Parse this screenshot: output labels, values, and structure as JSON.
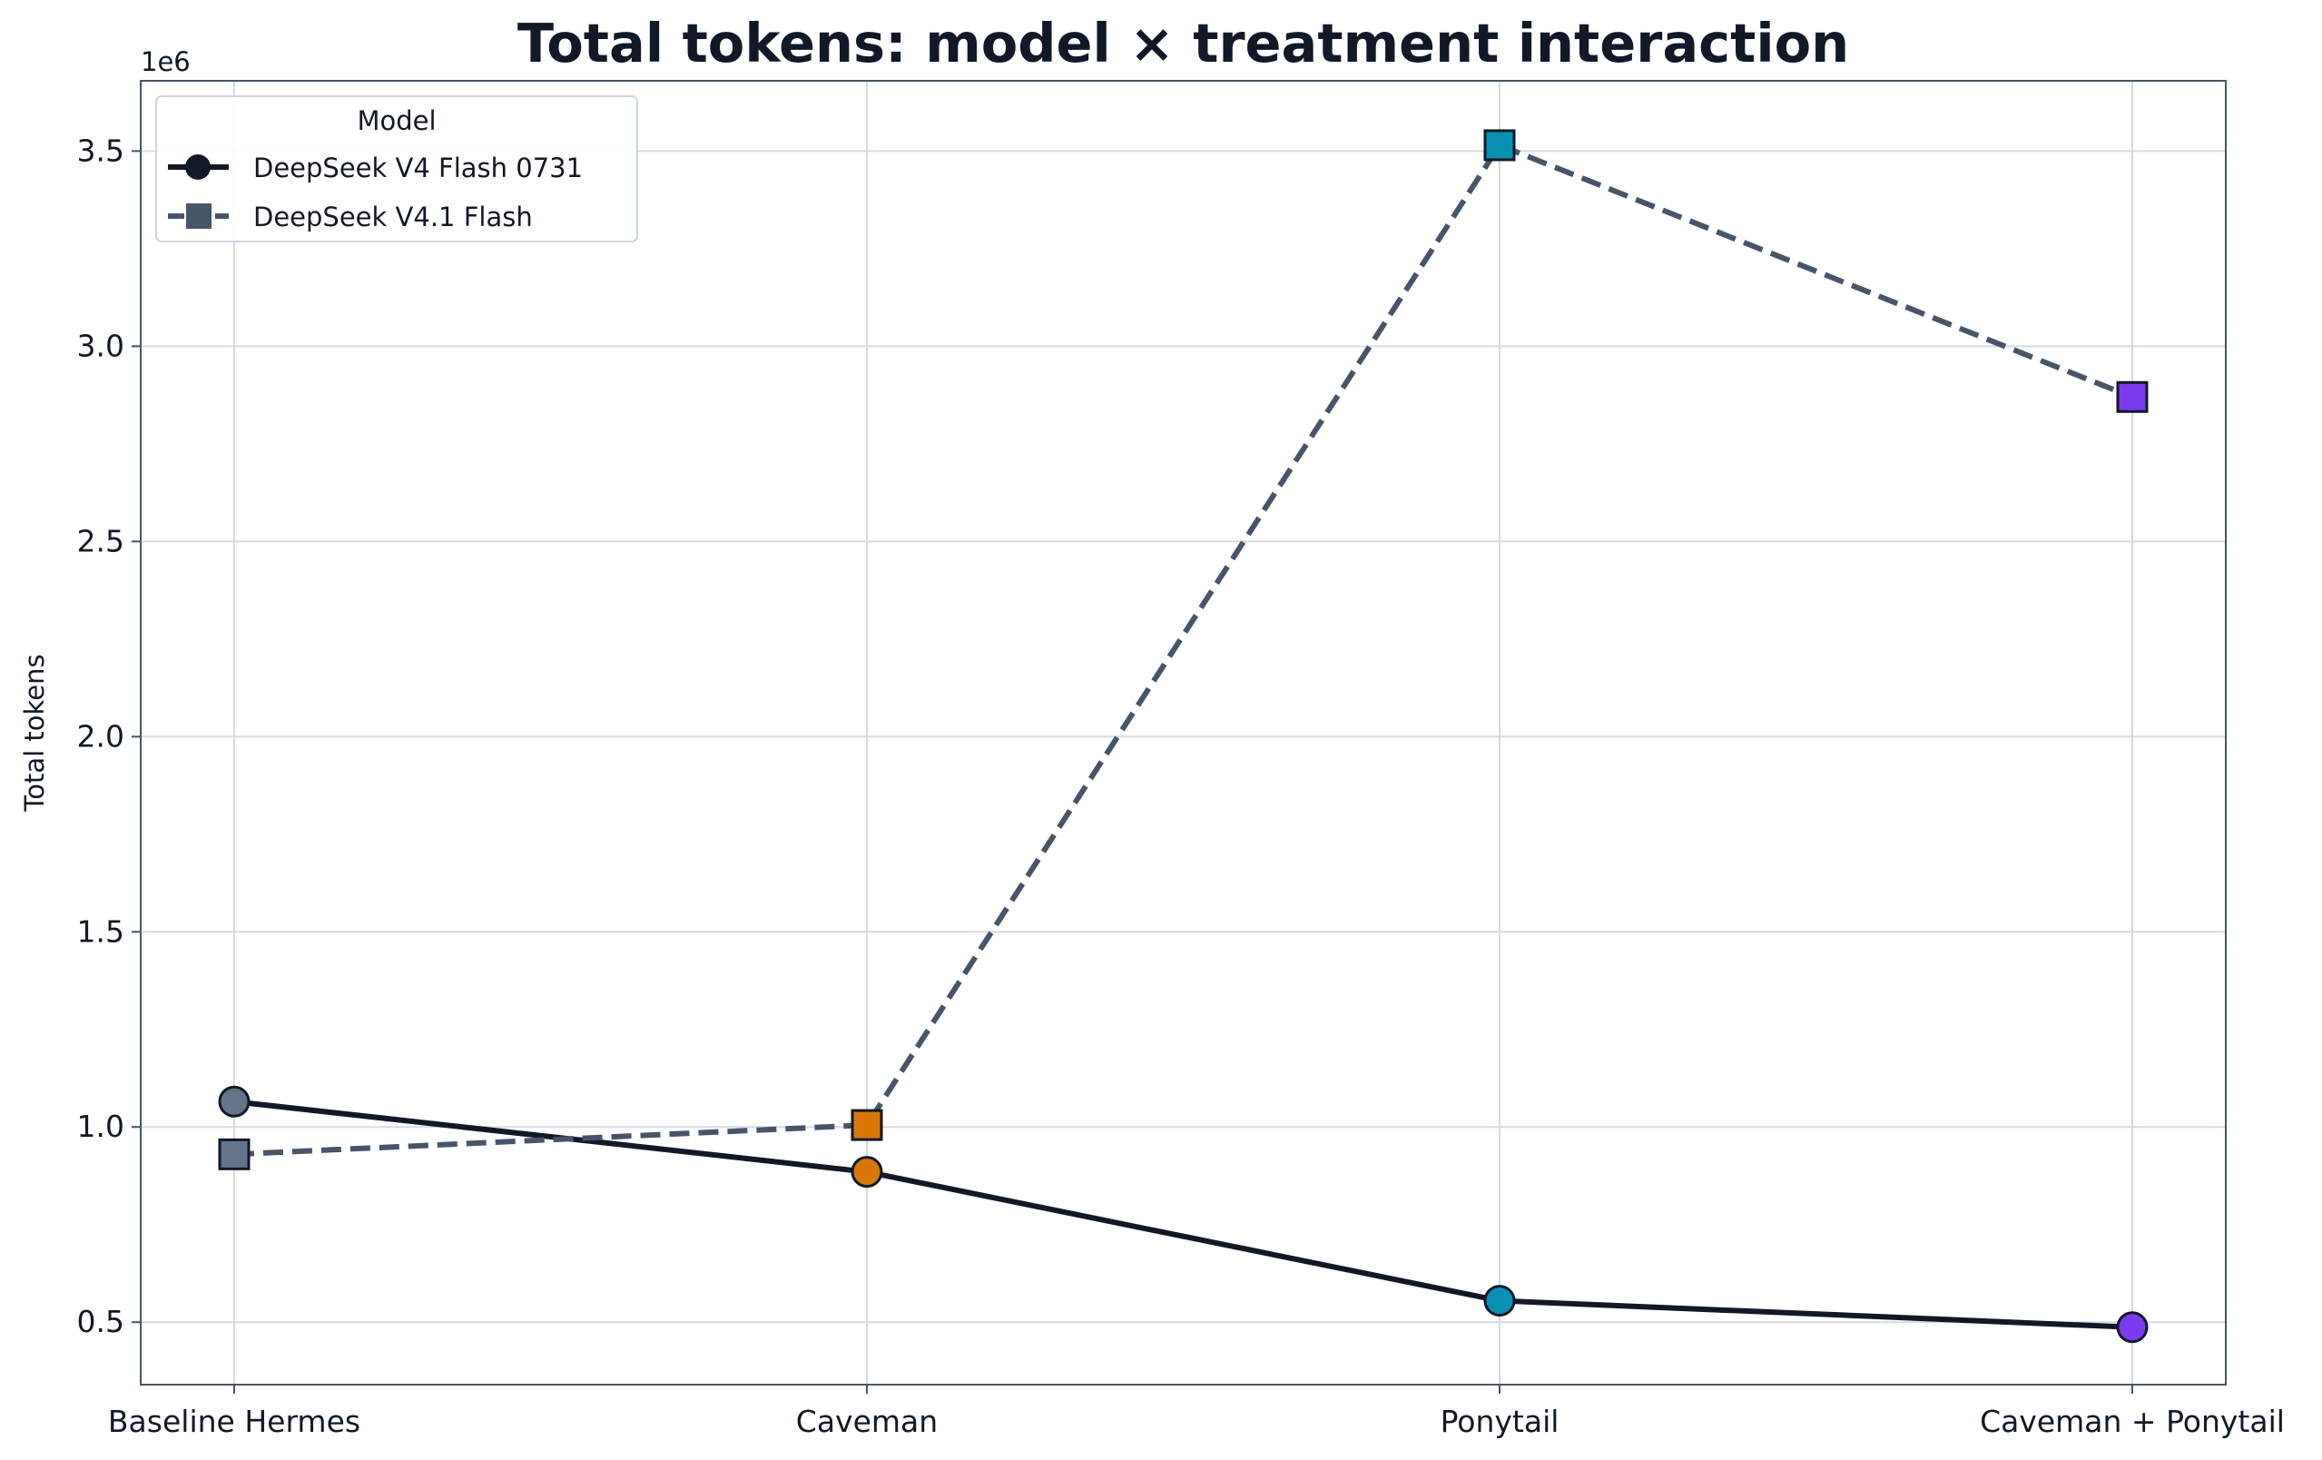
{
  "chart_data": {
    "type": "line",
    "title": "Total tokens: model × treatment interaction",
    "xlabel": "",
    "ylabel": "Total tokens",
    "y_offset_label": "1e6",
    "categories": [
      "Baseline Hermes",
      "Caveman",
      "Ponytail",
      "Caveman + Ponytail"
    ],
    "ylim": [
      0.34,
      3.68
    ],
    "yticks": [
      0.5,
      1.0,
      1.5,
      2.0,
      2.5,
      3.0,
      3.5
    ],
    "ytick_labels": [
      "0.5",
      "1.0",
      "1.5",
      "2.0",
      "2.5",
      "3.0",
      "3.5"
    ],
    "grid": true,
    "legend": {
      "title": "Model",
      "position": "top-left"
    },
    "category_colors": [
      "#64748b",
      "#d97706",
      "#0891b2",
      "#7c3aed"
    ],
    "series": [
      {
        "name": "DeepSeek V4 Flash 0731",
        "values": [
          1.065,
          0.885,
          0.555,
          0.487
        ],
        "color": "#111827",
        "style": "solid",
        "marker": "circle"
      },
      {
        "name": "DeepSeek V4.1 Flash",
        "values": [
          0.93,
          1.005,
          3.515,
          2.87
        ],
        "color": "#475569",
        "style": "dashed",
        "marker": "square"
      }
    ]
  }
}
